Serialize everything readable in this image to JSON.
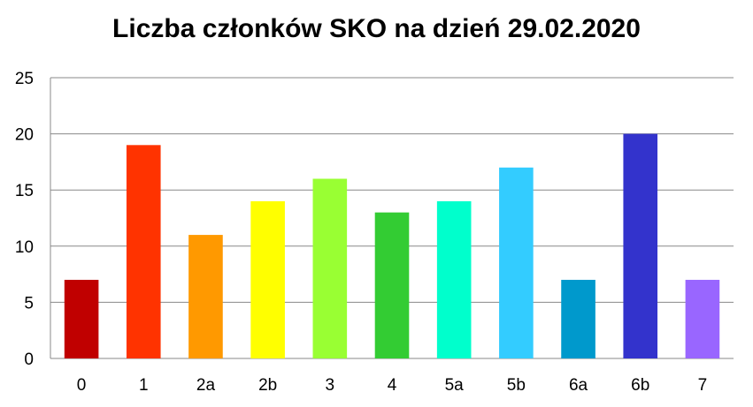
{
  "chart_data": {
    "type": "bar",
    "title": "Liczba członków SKO na dzień 29.02.2020",
    "xlabel": "",
    "ylabel": "",
    "categories": [
      "0",
      "1",
      "2a",
      "2b",
      "3",
      "4",
      "5a",
      "5b",
      "6a",
      "6b",
      "7"
    ],
    "values": [
      7,
      19,
      11,
      14,
      16,
      13,
      14,
      17,
      7,
      20,
      7
    ],
    "colors": [
      "#c00000",
      "#ff3300",
      "#ff9900",
      "#ffff00",
      "#99ff33",
      "#33cc33",
      "#00ffcc",
      "#33ccff",
      "#0099cc",
      "#3333cc",
      "#9966ff"
    ],
    "ylim": [
      0,
      25
    ],
    "yticks": [
      0,
      5,
      10,
      15,
      20,
      25
    ],
    "grid": true,
    "legend": "none"
  }
}
